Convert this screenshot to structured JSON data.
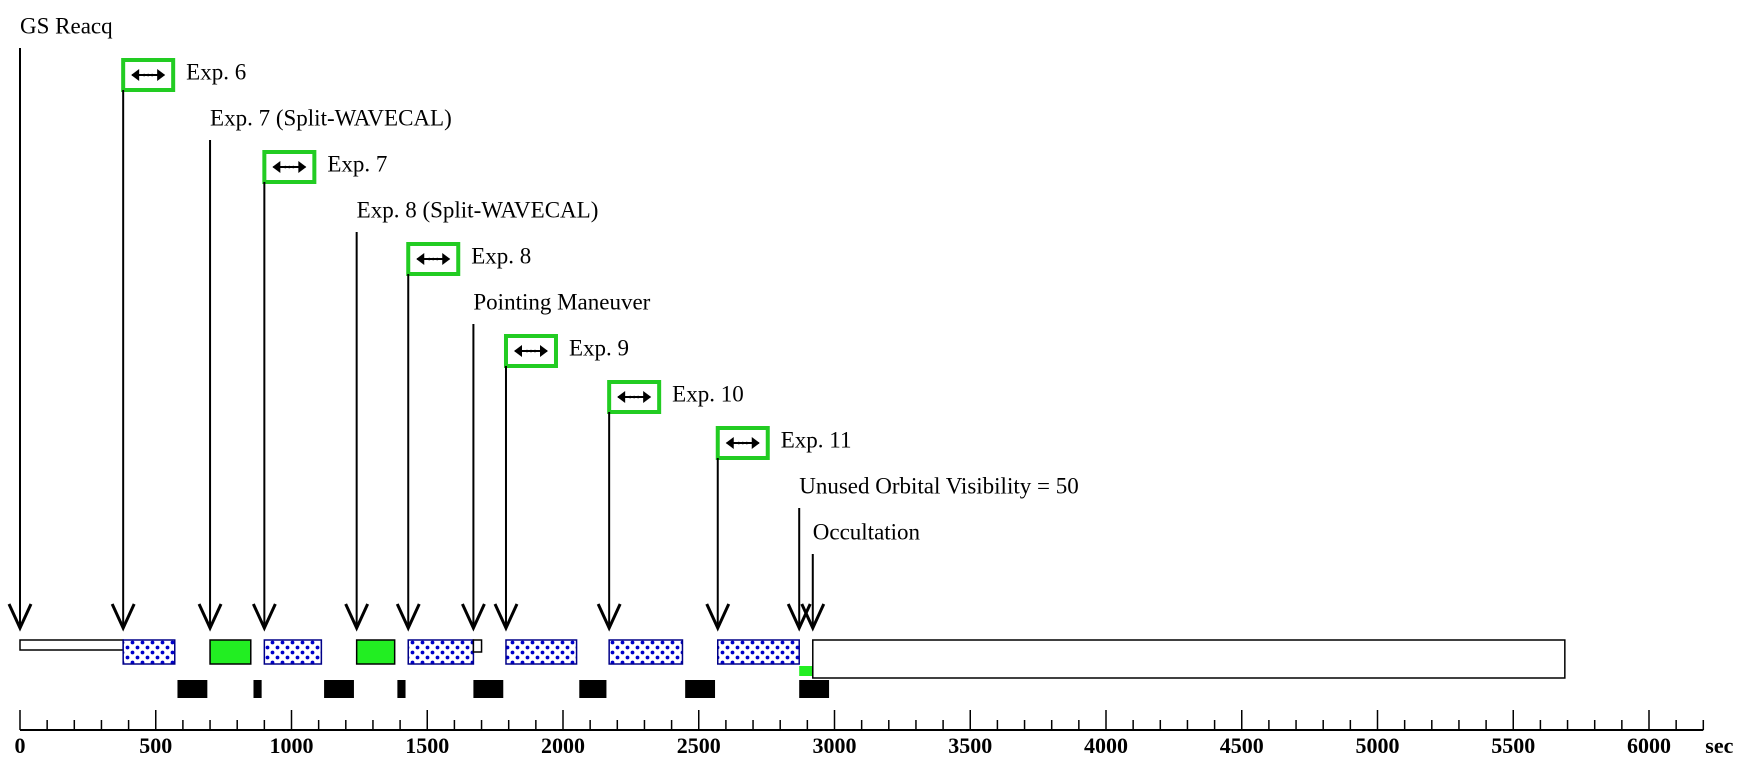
{
  "chart_data": {
    "type": "timeline",
    "axis": {
      "unit": "sec",
      "min": 0,
      "max": 6200,
      "major_ticks": [
        0,
        500,
        1000,
        1500,
        2000,
        2500,
        3000,
        3500,
        4000,
        4500,
        5000,
        5500,
        6000
      ],
      "minor_tick_step": 100
    },
    "events": [
      {
        "label": "GS Reacq",
        "time": 0,
        "kind": "text"
      },
      {
        "label": "Exp. 6",
        "time": 380,
        "kind": "exposure"
      },
      {
        "label": "Exp. 7 (Split-WAVECAL)",
        "time": 700,
        "kind": "text"
      },
      {
        "label": "Exp. 7",
        "time": 900,
        "kind": "exposure"
      },
      {
        "label": "Exp. 8 (Split-WAVECAL)",
        "time": 1240,
        "kind": "text"
      },
      {
        "label": "Exp. 8",
        "time": 1430,
        "kind": "exposure"
      },
      {
        "label": "Pointing Maneuver",
        "time": 1670,
        "kind": "text"
      },
      {
        "label": "Exp. 9",
        "time": 1790,
        "kind": "exposure"
      },
      {
        "label": "Exp. 10",
        "time": 2170,
        "kind": "exposure"
      },
      {
        "label": "Exp. 11",
        "time": 2570,
        "kind": "exposure"
      },
      {
        "label": "Unused Orbital Visibility = 50",
        "time": 2870,
        "kind": "text"
      },
      {
        "label": "Occultation",
        "time": 2920,
        "kind": "text"
      }
    ],
    "segments": [
      {
        "type": "guide-star",
        "start": 0,
        "end": 380
      },
      {
        "type": "science",
        "start": 380,
        "end": 570
      },
      {
        "type": "wavecal",
        "start": 700,
        "end": 850
      },
      {
        "type": "science",
        "start": 900,
        "end": 1110
      },
      {
        "type": "wavecal",
        "start": 1240,
        "end": 1380
      },
      {
        "type": "science",
        "start": 1430,
        "end": 1670
      },
      {
        "type": "maneuver",
        "start": 1670,
        "end": 1700
      },
      {
        "type": "science",
        "start": 1790,
        "end": 2050
      },
      {
        "type": "science",
        "start": 2170,
        "end": 2440
      },
      {
        "type": "science",
        "start": 2570,
        "end": 2870
      },
      {
        "type": "unused",
        "start": 2870,
        "end": 2920
      },
      {
        "type": "occultation",
        "start": 2920,
        "end": 5690
      }
    ],
    "overheads": [
      {
        "start": 580,
        "end": 690
      },
      {
        "start": 860,
        "end": 890
      },
      {
        "start": 1120,
        "end": 1230
      },
      {
        "start": 1390,
        "end": 1420
      },
      {
        "start": 1670,
        "end": 1780
      },
      {
        "start": 2060,
        "end": 2160
      },
      {
        "start": 2450,
        "end": 2560
      },
      {
        "start": 2870,
        "end": 2980
      }
    ],
    "colors": {
      "exposure_outline": "#22cc22",
      "wavecal_fill": "#22ee22",
      "science_dots": "#0000cc",
      "science_outline": "#000088",
      "overhead_fill": "#000000",
      "line": "#000000"
    }
  }
}
